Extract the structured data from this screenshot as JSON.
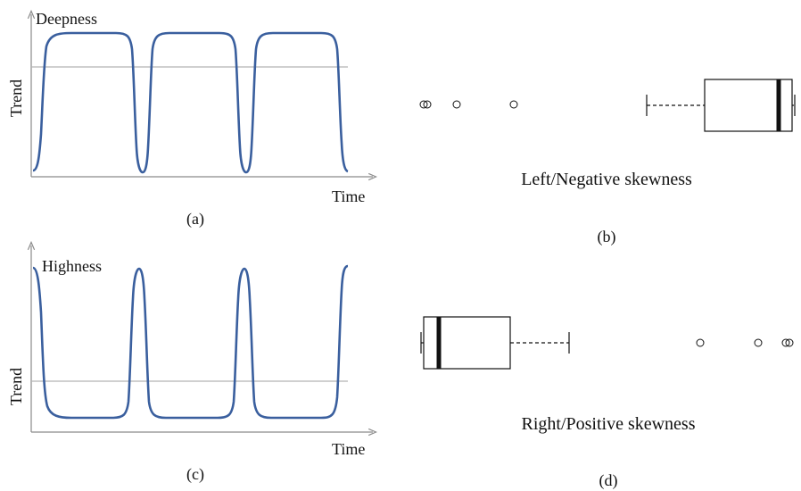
{
  "panels": {
    "a": {
      "caption": "(a)",
      "title": "Deepness",
      "ylabel": "Trend",
      "xlabel": "Time"
    },
    "b": {
      "caption": "(b)",
      "title": "Left/Negative skewness"
    },
    "c": {
      "caption": "(c)",
      "title": "Highness",
      "ylabel": "Trend",
      "xlabel": "Time"
    },
    "d": {
      "caption": "(d)",
      "title": "Right/Positive skewness"
    }
  },
  "colors": {
    "curve": "#3a5f9e",
    "threshold": "#b5b5b5",
    "axis": "#8a8a8a",
    "ink": "#111111"
  }
}
